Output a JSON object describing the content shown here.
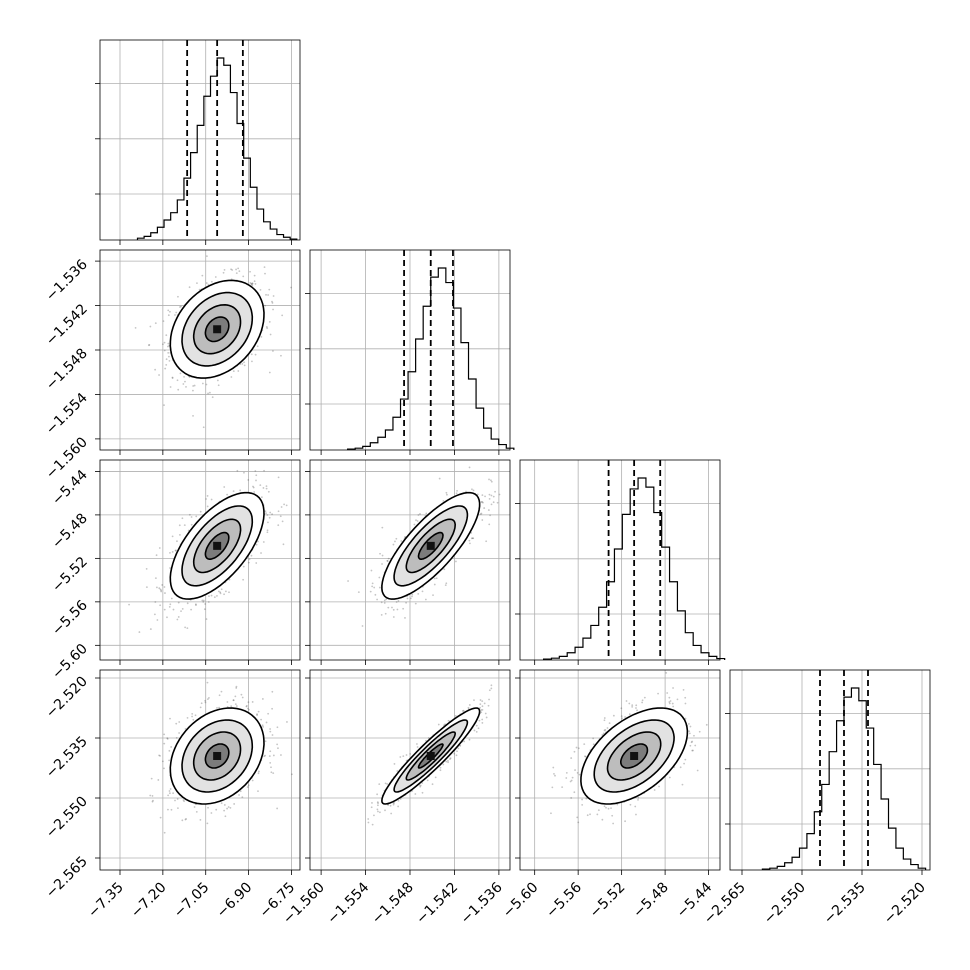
{
  "chart_data": {
    "type": "corner",
    "parameters": [
      {
        "range": [
          -7.42,
          -6.72
        ],
        "ticks": [
          -7.35,
          -7.2,
          -7.05,
          -6.9,
          -6.75
        ],
        "tick_labels": [
          "−7.35",
          "−7.20",
          "−7.05",
          "−6.90",
          "−6.75"
        ],
        "quantiles": [
          -7.115,
          -7.01,
          -6.92
        ],
        "median": -7.01,
        "sigma": 0.082
      },
      {
        "range": [
          -1.5615,
          -1.5345
        ],
        "ticks": [
          -1.56,
          -1.554,
          -1.548,
          -1.542,
          -1.536
        ],
        "tick_labels": [
          "−1.560",
          "−1.554",
          "−1.548",
          "−1.542",
          "−1.536"
        ],
        "quantiles": [
          -1.5488,
          -1.5452,
          -1.5422
        ],
        "median": -1.5452,
        "sigma": 0.0033
      },
      {
        "range": [
          -5.6135,
          -5.4295
        ],
        "ticks": [
          -5.6,
          -5.56,
          -5.52,
          -5.48,
          -5.44
        ],
        "tick_labels": [
          "−5.60",
          "−5.56",
          "−5.52",
          "−5.48",
          "−5.44"
        ],
        "quantiles": [
          -5.532,
          -5.5085,
          -5.4845
        ],
        "median": -5.5085,
        "sigma": 0.0245
      },
      {
        "range": [
          -2.568,
          -2.518
        ],
        "ticks": [
          -2.565,
          -2.55,
          -2.535,
          -2.52
        ],
        "tick_labels": [
          "−2.565",
          "−2.550",
          "−2.535",
          "−2.520"
        ],
        "quantiles": [
          -2.5455,
          -2.5395,
          -2.5335
        ],
        "median": -2.5395,
        "sigma": 0.006
      }
    ],
    "histograms": [
      [
        0.01,
        0.02,
        0.04,
        0.07,
        0.11,
        0.15,
        0.22,
        0.34,
        0.48,
        0.63,
        0.79,
        0.9,
        1.0,
        0.96,
        0.81,
        0.64,
        0.45,
        0.29,
        0.17,
        0.1,
        0.06,
        0.03,
        0.015,
        0.005
      ],
      [
        0.005,
        0.01,
        0.02,
        0.04,
        0.07,
        0.11,
        0.18,
        0.28,
        0.43,
        0.61,
        0.79,
        0.95,
        1.0,
        0.92,
        0.78,
        0.59,
        0.39,
        0.23,
        0.12,
        0.06,
        0.03,
        0.01
      ],
      [
        0.005,
        0.01,
        0.02,
        0.04,
        0.07,
        0.12,
        0.19,
        0.29,
        0.43,
        0.61,
        0.8,
        0.94,
        1.0,
        0.95,
        0.81,
        0.62,
        0.43,
        0.27,
        0.15,
        0.08,
        0.04,
        0.02,
        0.008
      ],
      [
        0.005,
        0.01,
        0.02,
        0.04,
        0.07,
        0.12,
        0.2,
        0.32,
        0.47,
        0.65,
        0.82,
        0.95,
        1.0,
        0.93,
        0.78,
        0.58,
        0.39,
        0.23,
        0.12,
        0.06,
        0.03,
        0.01
      ]
    ],
    "correlations": [
      [
        1.0,
        0.3,
        0.62,
        0.28
      ],
      [
        0.3,
        1.0,
        0.78,
        0.93
      ],
      [
        0.62,
        0.78,
        1.0,
        0.5
      ],
      [
        0.28,
        0.93,
        0.5,
        1.0
      ]
    ],
    "contour_levels_sigma": [
      0.5,
      1.0,
      1.5,
      2.0
    ],
    "grid": true,
    "quantile_style": "dashed"
  }
}
